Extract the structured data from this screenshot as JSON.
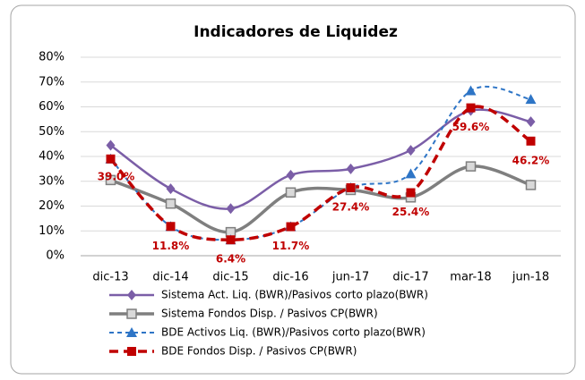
{
  "chart_data": {
    "type": "line",
    "title": "Indicadores de Liquidez",
    "categories": [
      "dic-13",
      "dic-14",
      "dic-15",
      "dic-16",
      "jun-17",
      "dic-17",
      "mar-18",
      "jun-18"
    ],
    "ylim": [
      0,
      80
    ],
    "yticks": [
      {
        "value": 0,
        "label": "0%"
      },
      {
        "value": 10,
        "label": "10%"
      },
      {
        "value": 20,
        "label": "20%"
      },
      {
        "value": 30,
        "label": "30%"
      },
      {
        "value": 40,
        "label": "40%"
      },
      {
        "value": 50,
        "label": "50%"
      },
      {
        "value": 60,
        "label": "60%"
      },
      {
        "value": 70,
        "label": "70%"
      },
      {
        "value": 80,
        "label": "80%"
      }
    ],
    "grid": true,
    "series": [
      {
        "name": "Sistema Act. Liq. (BWR)/Pasivos corto plazo(BWR)",
        "color": "#7b5ea7",
        "marker": "diamond",
        "dash": "solid",
        "values": [
          44.5,
          27,
          19,
          32.5,
          35,
          42.5,
          58.5,
          54
        ]
      },
      {
        "name": "Sistema Fondos Disp. / Pasivos CP(BWR)",
        "color": "#7f7f7f",
        "marker": "square-open",
        "dash": "solid",
        "values": [
          30.5,
          21,
          9.5,
          25.5,
          26.5,
          23.5,
          36,
          28.5
        ]
      },
      {
        "name": "BDE Activos Liq. (BWR)/Pasivos corto plazo(BWR)",
        "color": "#2e75c6",
        "marker": "triangle",
        "dash": "dashed",
        "values": [
          39,
          11.8,
          6.4,
          11.7,
          27.4,
          33,
          66.5,
          63
        ]
      },
      {
        "name": "BDE Fondos Disp. / Pasivos CP(BWR)",
        "color": "#c00000",
        "marker": "square",
        "dash": "dashed",
        "values": [
          39.0,
          11.8,
          6.4,
          11.7,
          27.4,
          25.4,
          59.6,
          46.2
        ],
        "value_labels": [
          "39.0%",
          "11.8%",
          "6.4%",
          "11.7%",
          "27.4%",
          "25.4%",
          "59.6%",
          "46.2%"
        ]
      }
    ]
  }
}
